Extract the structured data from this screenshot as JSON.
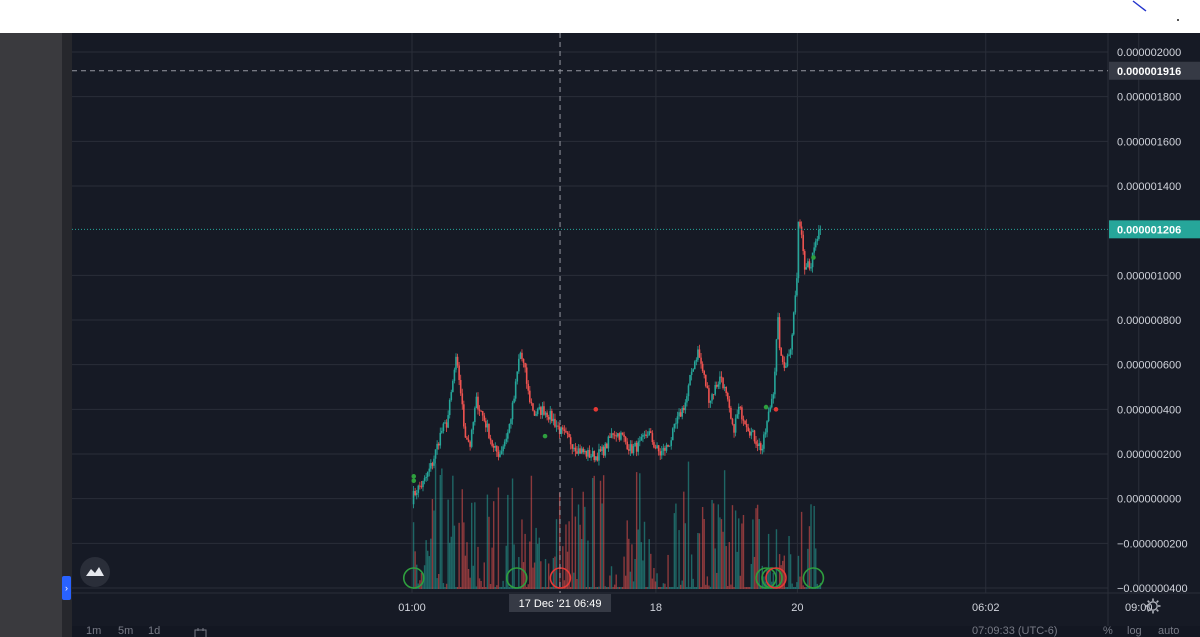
{
  "chart_data": {
    "type": "candlestick",
    "instrument_scale": "linear",
    "y_axis": {
      "ticks": [
        {
          "value": 2e-06,
          "label": "0.000002000"
        },
        {
          "value": 1.8e-06,
          "label": "0.000001800"
        },
        {
          "value": 1.6e-06,
          "label": "0.000001600"
        },
        {
          "value": 1.4e-06,
          "label": "0.000001400"
        },
        {
          "value": 1e-06,
          "label": "0.000001000"
        },
        {
          "value": 8e-07,
          "label": "0.000000800"
        },
        {
          "value": 6e-07,
          "label": "0.000000600"
        },
        {
          "value": 4e-07,
          "label": "0.000000400"
        },
        {
          "value": 2e-07,
          "label": "0.000000200"
        },
        {
          "value": 0.0,
          "label": "0.000000000"
        },
        {
          "value": -2e-07,
          "label": "−0.000000200"
        },
        {
          "value": -4e-07,
          "label": "−0.000000400"
        }
      ],
      "ylim": [
        -4.15e-07,
        2.035e-06
      ]
    },
    "x_axis": {
      "ticks": [
        {
          "label": "01:00",
          "t": 0
        },
        {
          "label": "18",
          "t": 0.418
        },
        {
          "label": "20",
          "t": 0.6605
        },
        {
          "label": "06:02",
          "t": 0.9833
        },
        {
          "label": "09:00",
          "t": 1.2455
        }
      ]
    },
    "crosshair": {
      "price_label": "0.000001916",
      "time_label": "17 Dec '21   06:49",
      "t": 0.2537,
      "price": 1.916e-06
    },
    "last_price": {
      "label": "0.000001206",
      "price": 1.206e-06
    },
    "price_path": [
      [
        0.0,
        0.0
      ],
      [
        0.008,
        0.04
      ],
      [
        0.02,
        0.07
      ],
      [
        0.035,
        0.16
      ],
      [
        0.05,
        0.3
      ],
      [
        0.06,
        0.34
      ],
      [
        0.068,
        0.48
      ],
      [
        0.075,
        0.62
      ],
      [
        0.082,
        0.52
      ],
      [
        0.09,
        0.3
      ],
      [
        0.1,
        0.24
      ],
      [
        0.11,
        0.44
      ],
      [
        0.12,
        0.38
      ],
      [
        0.13,
        0.31
      ],
      [
        0.14,
        0.22
      ],
      [
        0.15,
        0.2
      ],
      [
        0.165,
        0.3
      ],
      [
        0.175,
        0.45
      ],
      [
        0.185,
        0.66
      ],
      [
        0.193,
        0.58
      ],
      [
        0.2,
        0.46
      ],
      [
        0.21,
        0.38
      ],
      [
        0.225,
        0.4
      ],
      [
        0.24,
        0.36
      ],
      [
        0.255,
        0.3
      ],
      [
        0.27,
        0.26
      ],
      [
        0.285,
        0.22
      ],
      [
        0.3,
        0.2
      ],
      [
        0.315,
        0.19
      ],
      [
        0.33,
        0.22
      ],
      [
        0.345,
        0.3
      ],
      [
        0.36,
        0.28
      ],
      [
        0.375,
        0.22
      ],
      [
        0.39,
        0.24
      ],
      [
        0.405,
        0.3
      ],
      [
        0.415,
        0.24
      ],
      [
        0.425,
        0.2
      ],
      [
        0.44,
        0.24
      ],
      [
        0.455,
        0.35
      ],
      [
        0.47,
        0.44
      ],
      [
        0.48,
        0.58
      ],
      [
        0.49,
        0.66
      ],
      [
        0.5,
        0.55
      ],
      [
        0.51,
        0.44
      ],
      [
        0.52,
        0.5
      ],
      [
        0.53,
        0.55
      ],
      [
        0.54,
        0.44
      ],
      [
        0.55,
        0.3
      ],
      [
        0.56,
        0.4
      ],
      [
        0.57,
        0.36
      ],
      [
        0.58,
        0.3
      ],
      [
        0.59,
        0.26
      ],
      [
        0.6,
        0.22
      ],
      [
        0.61,
        0.36
      ],
      [
        0.62,
        0.5
      ],
      [
        0.627,
        0.8
      ],
      [
        0.632,
        0.62
      ],
      [
        0.64,
        0.6
      ],
      [
        0.65,
        0.7
      ],
      [
        0.66,
        1.0
      ],
      [
        0.663,
        1.28
      ],
      [
        0.668,
        1.18
      ],
      [
        0.673,
        1.05
      ],
      [
        0.678,
        1.07
      ],
      [
        0.683,
        1.04
      ],
      [
        0.69,
        1.12
      ],
      [
        0.695,
        1.17
      ],
      [
        0.7,
        1.206
      ]
    ],
    "volume_max": 0.6
  },
  "signals": [
    {
      "type": "buy",
      "t": 0.003
    },
    {
      "type": "buy",
      "t": 0.1795
    },
    {
      "type": "sell",
      "t": 0.2543
    },
    {
      "type": "buy",
      "t": 0.6068
    },
    {
      "type": "buy",
      "t": 0.617
    },
    {
      "type": "sell",
      "t": 0.6238
    },
    {
      "type": "buy",
      "t": 0.688
    }
  ],
  "colors": {
    "background": "#161a25",
    "grid": "#2a2e39",
    "up": "#26a69a",
    "down": "#ef5350",
    "axis_text": "#d1d4dc",
    "last_price_label": "#26a69a"
  },
  "bottom_bar": {
    "timeframes": [
      "1m",
      "5m",
      "1d"
    ],
    "clock": "07:09:33 (UTC-6)",
    "percent": "%",
    "log": "log",
    "auto": "auto"
  },
  "icons": {
    "settings": "gear-icon",
    "logo": "cloud-logo-icon",
    "collapse": "chevron-right-icon",
    "calendar": "calendar-icon",
    "pencil": "pencil-icon"
  }
}
